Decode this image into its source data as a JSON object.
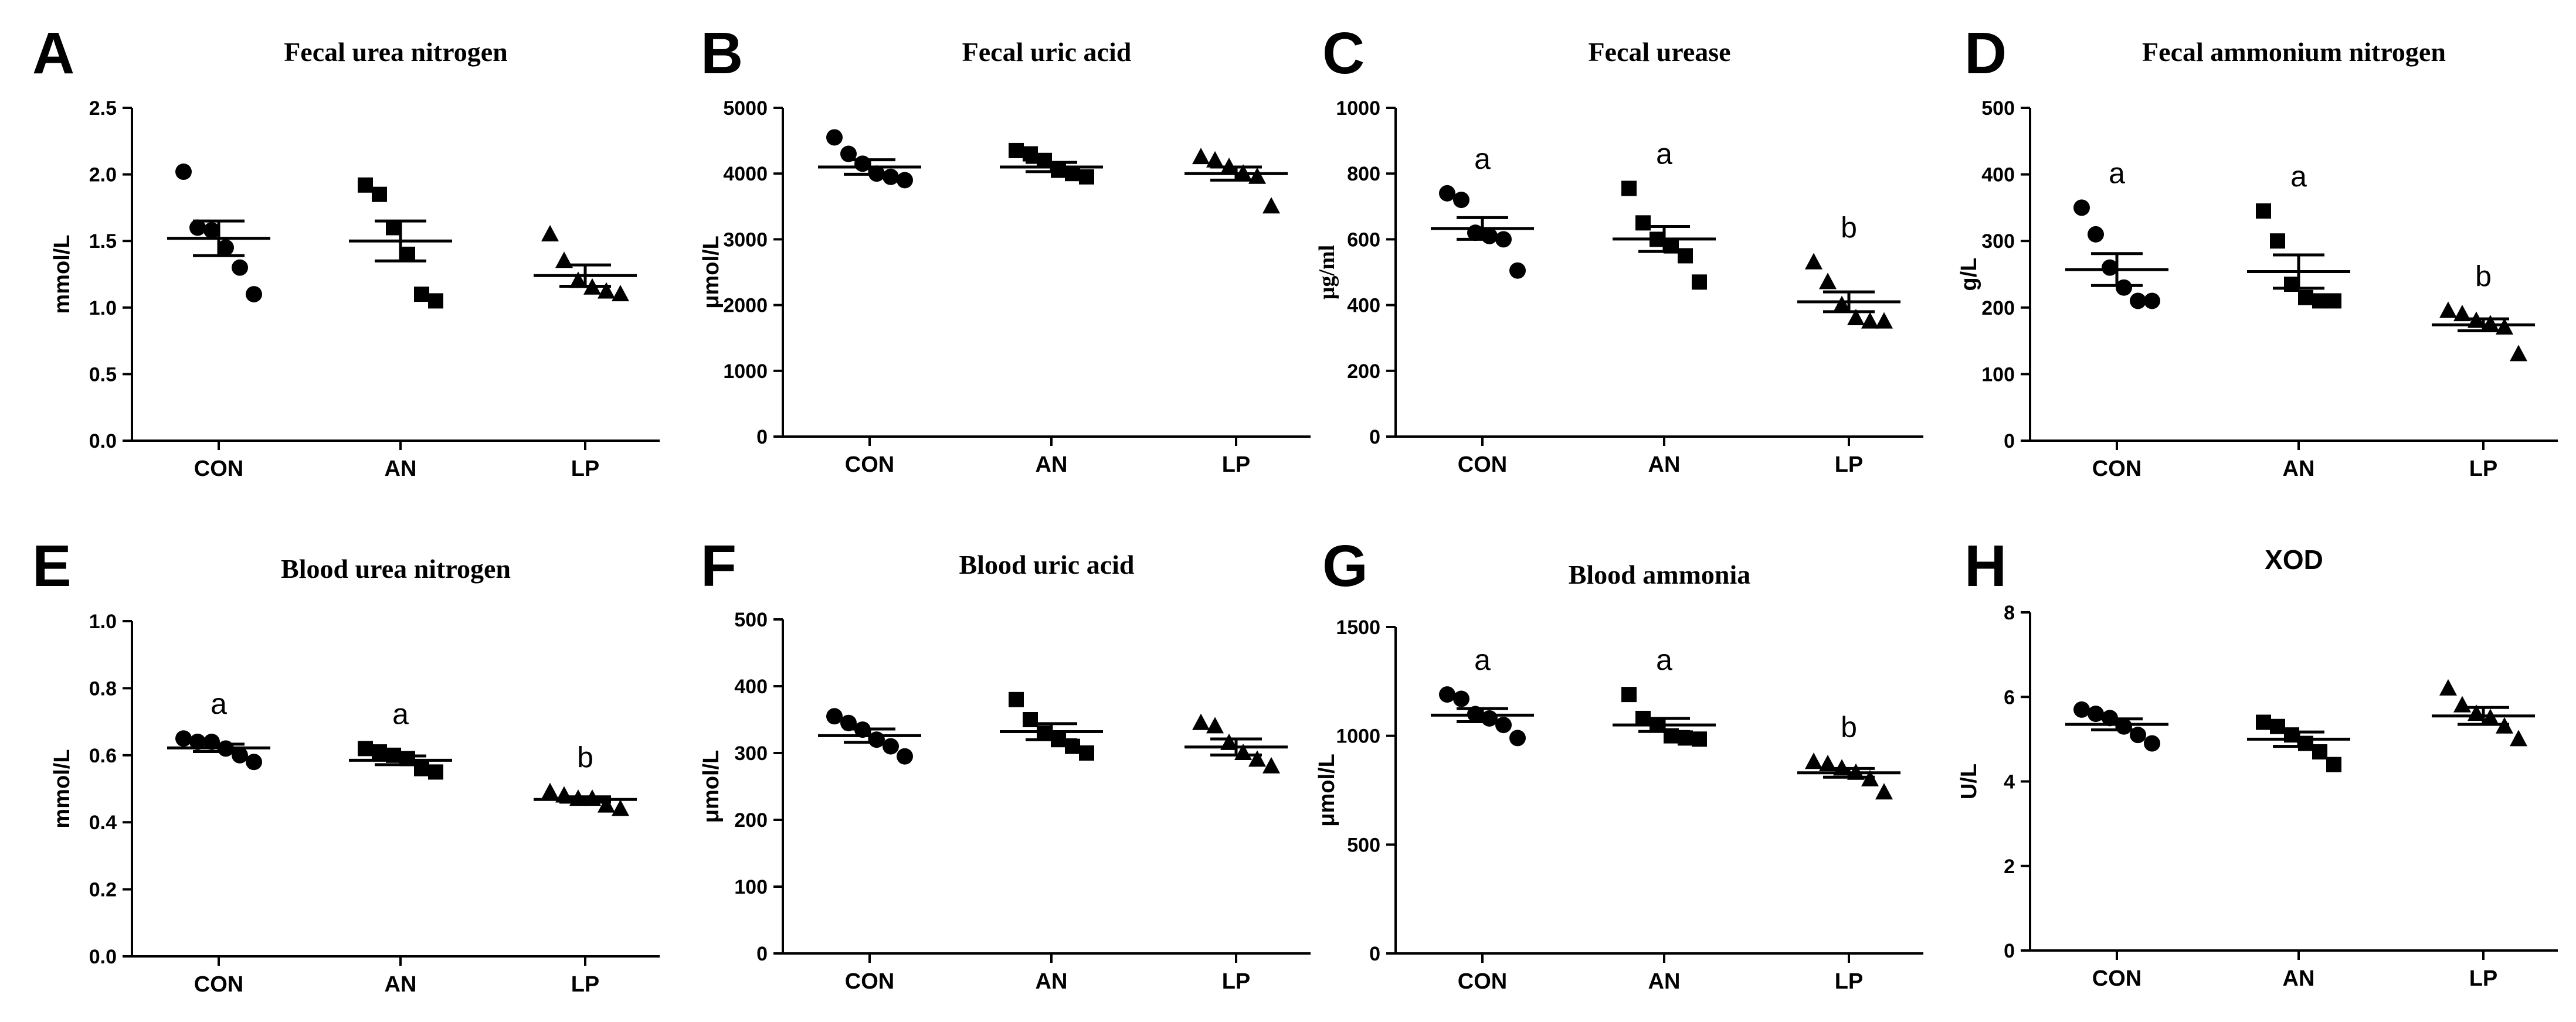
{
  "chart_data": [
    {
      "letter": "A",
      "type": "scatter",
      "title": "Fecal urea nitrogen",
      "title_font": "serif",
      "ylabel": "mmol/L",
      "ylim": [
        0,
        2.5
      ],
      "yticks": [
        0,
        0.5,
        1.0,
        1.5,
        2.0,
        2.5
      ],
      "ytick_labels": [
        "0.0",
        "0.5",
        "1.0",
        "1.5",
        "2.0",
        "2.5"
      ],
      "categories": [
        "CON",
        "AN",
        "LP"
      ],
      "series": [
        {
          "name": "CON",
          "marker": "circle",
          "values": [
            2.02,
            1.6,
            1.58,
            1.45,
            1.3,
            1.1
          ],
          "mean": 1.52,
          "sem": 0.13,
          "sig": ""
        },
        {
          "name": "AN",
          "marker": "square",
          "values": [
            1.92,
            1.85,
            1.6,
            1.4,
            1.1,
            1.05
          ],
          "mean": 1.5,
          "sem": 0.15,
          "sig": ""
        },
        {
          "name": "LP",
          "marker": "triangle",
          "values": [
            1.55,
            1.35,
            1.2,
            1.15,
            1.12,
            1.1
          ],
          "mean": 1.24,
          "sem": 0.08,
          "sig": ""
        }
      ]
    },
    {
      "letter": "B",
      "type": "scatter",
      "title": "Fecal uric acid",
      "title_font": "serif",
      "ylabel": "μmol/L",
      "ylim": [
        0,
        5000
      ],
      "yticks": [
        0,
        1000,
        2000,
        3000,
        4000,
        5000
      ],
      "ytick_labels": [
        "0",
        "1000",
        "2000",
        "3000",
        "4000",
        "5000"
      ],
      "categories": [
        "CON",
        "AN",
        "LP"
      ],
      "series": [
        {
          "name": "CON",
          "marker": "circle",
          "values": [
            4550,
            4300,
            4150,
            4000,
            3950,
            3900
          ],
          "mean": 4100,
          "sem": 110,
          "sig": ""
        },
        {
          "name": "AN",
          "marker": "square",
          "values": [
            4350,
            4300,
            4200,
            4050,
            4000,
            3950
          ],
          "mean": 4100,
          "sem": 70,
          "sig": ""
        },
        {
          "name": "LP",
          "marker": "triangle",
          "values": [
            4250,
            4200,
            4100,
            4000,
            3950,
            3500
          ],
          "mean": 4000,
          "sem": 100,
          "sig": ""
        }
      ]
    },
    {
      "letter": "C",
      "type": "scatter",
      "title": "Fecal urease",
      "title_font": "serif",
      "ylabel": "μg/ml",
      "ylabel_font": "serif",
      "ylim": [
        0,
        1000
      ],
      "yticks": [
        0,
        200,
        400,
        600,
        800,
        1000
      ],
      "ytick_labels": [
        "0",
        "200",
        "400",
        "600",
        "800",
        "1000"
      ],
      "categories": [
        "CON",
        "AN",
        "LP"
      ],
      "series": [
        {
          "name": "CON",
          "marker": "circle",
          "values": [
            740,
            720,
            620,
            610,
            600,
            505
          ],
          "mean": 633,
          "sem": 33,
          "sig": "a"
        },
        {
          "name": "AN",
          "marker": "square",
          "values": [
            755,
            650,
            600,
            580,
            550,
            470
          ],
          "mean": 601,
          "sem": 38,
          "sig": "a"
        },
        {
          "name": "LP",
          "marker": "triangle",
          "values": [
            530,
            470,
            400,
            360,
            350,
            350
          ],
          "mean": 410,
          "sem": 30,
          "sig": "b"
        }
      ]
    },
    {
      "letter": "D",
      "type": "scatter",
      "title": "Fecal ammonium nitrogen",
      "title_font": "serif",
      "ylabel": "g/L",
      "ylim": [
        0,
        500
      ],
      "yticks": [
        0,
        100,
        200,
        300,
        400,
        500
      ],
      "ytick_labels": [
        "0",
        "100",
        "200",
        "300",
        "400",
        "500"
      ],
      "categories": [
        "CON",
        "AN",
        "LP"
      ],
      "series": [
        {
          "name": "CON",
          "marker": "circle",
          "values": [
            350,
            310,
            260,
            230,
            210,
            210
          ],
          "mean": 257,
          "sem": 24,
          "sig": "a"
        },
        {
          "name": "AN",
          "marker": "square",
          "values": [
            345,
            300,
            235,
            215,
            210,
            210
          ],
          "mean": 254,
          "sem": 25,
          "sig": "a"
        },
        {
          "name": "LP",
          "marker": "triangle",
          "values": [
            195,
            190,
            180,
            175,
            170,
            130
          ],
          "mean": 174,
          "sem": 9,
          "sig": "b"
        }
      ]
    },
    {
      "letter": "E",
      "type": "scatter",
      "title": "Blood urea nitrogen",
      "title_font": "serif",
      "ylabel": "mmol/L",
      "ylim": [
        0,
        1.0
      ],
      "yticks": [
        0,
        0.2,
        0.4,
        0.6,
        0.8,
        1.0
      ],
      "ytick_labels": [
        "0.0",
        "0.2",
        "0.4",
        "0.6",
        "0.8",
        "1.0"
      ],
      "categories": [
        "CON",
        "AN",
        "LP"
      ],
      "series": [
        {
          "name": "CON",
          "marker": "circle",
          "values": [
            0.65,
            0.64,
            0.64,
            0.62,
            0.6,
            0.58
          ],
          "mean": 0.622,
          "sem": 0.011,
          "sig": "a"
        },
        {
          "name": "AN",
          "marker": "square",
          "values": [
            0.62,
            0.61,
            0.6,
            0.59,
            0.56,
            0.55
          ],
          "mean": 0.585,
          "sem": 0.013,
          "sig": "a"
        },
        {
          "name": "LP",
          "marker": "triangle",
          "values": [
            0.49,
            0.48,
            0.47,
            0.47,
            0.45,
            0.44
          ],
          "mean": 0.468,
          "sem": 0.008,
          "sig": "b"
        }
      ]
    },
    {
      "letter": "F",
      "type": "scatter",
      "title": "Blood uric acid",
      "title_font": "serif",
      "ylabel": "μmol/L",
      "ylim": [
        0,
        500
      ],
      "yticks": [
        0,
        100,
        200,
        300,
        400,
        500
      ],
      "ytick_labels": [
        "0",
        "100",
        "200",
        "300",
        "400",
        "500"
      ],
      "categories": [
        "CON",
        "AN",
        "LP"
      ],
      "series": [
        {
          "name": "CON",
          "marker": "circle",
          "values": [
            355,
            345,
            335,
            320,
            310,
            295
          ],
          "mean": 326,
          "sem": 10,
          "sig": ""
        },
        {
          "name": "AN",
          "marker": "square",
          "values": [
            380,
            350,
            330,
            320,
            310,
            300
          ],
          "mean": 332,
          "sem": 12,
          "sig": ""
        },
        {
          "name": "LP",
          "marker": "triangle",
          "values": [
            345,
            340,
            315,
            300,
            290,
            280
          ],
          "mean": 309,
          "sem": 12,
          "sig": ""
        }
      ]
    },
    {
      "letter": "G",
      "type": "scatter",
      "title": "Blood ammonia",
      "title_font": "serif",
      "ylabel": "μmol/L",
      "ylim": [
        0,
        1500
      ],
      "yticks": [
        0,
        500,
        1000,
        1500
      ],
      "ytick_labels": [
        "0",
        "500",
        "1000",
        "1500"
      ],
      "categories": [
        "CON",
        "AN",
        "LP"
      ],
      "series": [
        {
          "name": "CON",
          "marker": "circle",
          "values": [
            1190,
            1170,
            1100,
            1080,
            1050,
            990
          ],
          "mean": 1095,
          "sem": 30,
          "sig": "a"
        },
        {
          "name": "AN",
          "marker": "square",
          "values": [
            1190,
            1080,
            1050,
            1000,
            990,
            985
          ],
          "mean": 1050,
          "sem": 30,
          "sig": "a"
        },
        {
          "name": "LP",
          "marker": "triangle",
          "values": [
            880,
            870,
            850,
            830,
            800,
            740
          ],
          "mean": 830,
          "sem": 20,
          "sig": "b"
        }
      ]
    },
    {
      "letter": "H",
      "type": "scatter",
      "title": "XOD",
      "title_font": "sans",
      "ylabel": "U/L",
      "ylim": [
        0,
        8
      ],
      "yticks": [
        0,
        2,
        4,
        6,
        8
      ],
      "ytick_labels": [
        "0",
        "2",
        "4",
        "6",
        "8"
      ],
      "categories": [
        "CON",
        "AN",
        "LP"
      ],
      "series": [
        {
          "name": "CON",
          "marker": "circle",
          "values": [
            5.7,
            5.6,
            5.5,
            5.3,
            5.1,
            4.9
          ],
          "mean": 5.35,
          "sem": 0.13,
          "sig": ""
        },
        {
          "name": "AN",
          "marker": "square",
          "values": [
            5.4,
            5.3,
            5.1,
            4.9,
            4.7,
            4.4
          ],
          "mean": 5.0,
          "sem": 0.17,
          "sig": ""
        },
        {
          "name": "LP",
          "marker": "triangle",
          "values": [
            6.2,
            5.8,
            5.6,
            5.5,
            5.3,
            5.0
          ],
          "mean": 5.55,
          "sem": 0.2,
          "sig": ""
        }
      ]
    }
  ]
}
